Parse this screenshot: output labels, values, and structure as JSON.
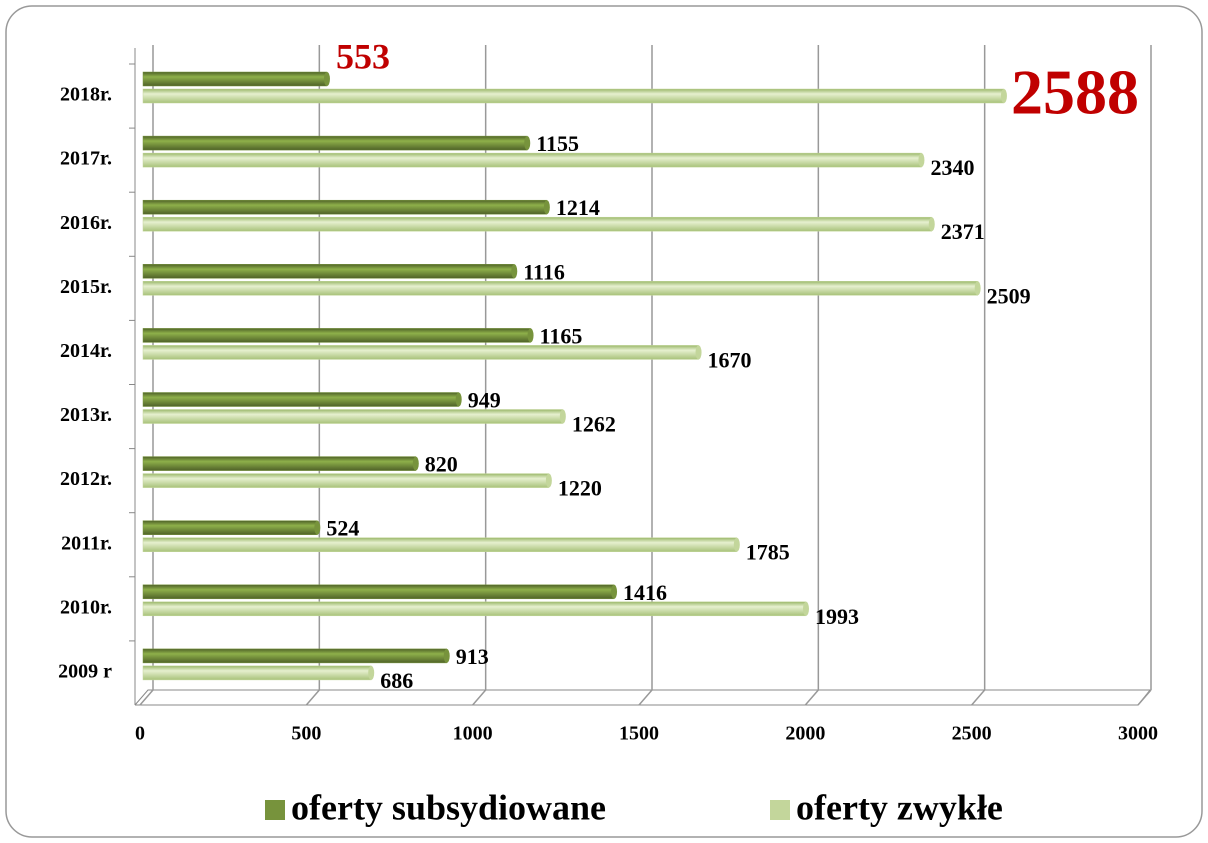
{
  "chart_data": {
    "type": "bar",
    "orientation": "horizontal",
    "categories": [
      "2018r.",
      "2017r.",
      "2016r.",
      "2015r.",
      "2014r.",
      "2013r.",
      "2012r.",
      "2011r.",
      "2010r.",
      "2009 r"
    ],
    "series": [
      {
        "name": "oferty subsydiowane",
        "color": "#77933c",
        "values": [
          553,
          1155,
          1214,
          1116,
          1165,
          949,
          820,
          524,
          1416,
          913
        ]
      },
      {
        "name": "oferty zwykłe",
        "color": "#c3d69b",
        "values": [
          2588,
          2340,
          2371,
          2509,
          1670,
          1262,
          1220,
          1785,
          1993,
          686
        ]
      }
    ],
    "xlim": [
      0,
      3000
    ],
    "xticks": [
      0,
      500,
      1000,
      1500,
      2000,
      2500,
      3000
    ],
    "grid": true,
    "highlight_category": "2018r.",
    "highlight_color": "#c00000"
  }
}
